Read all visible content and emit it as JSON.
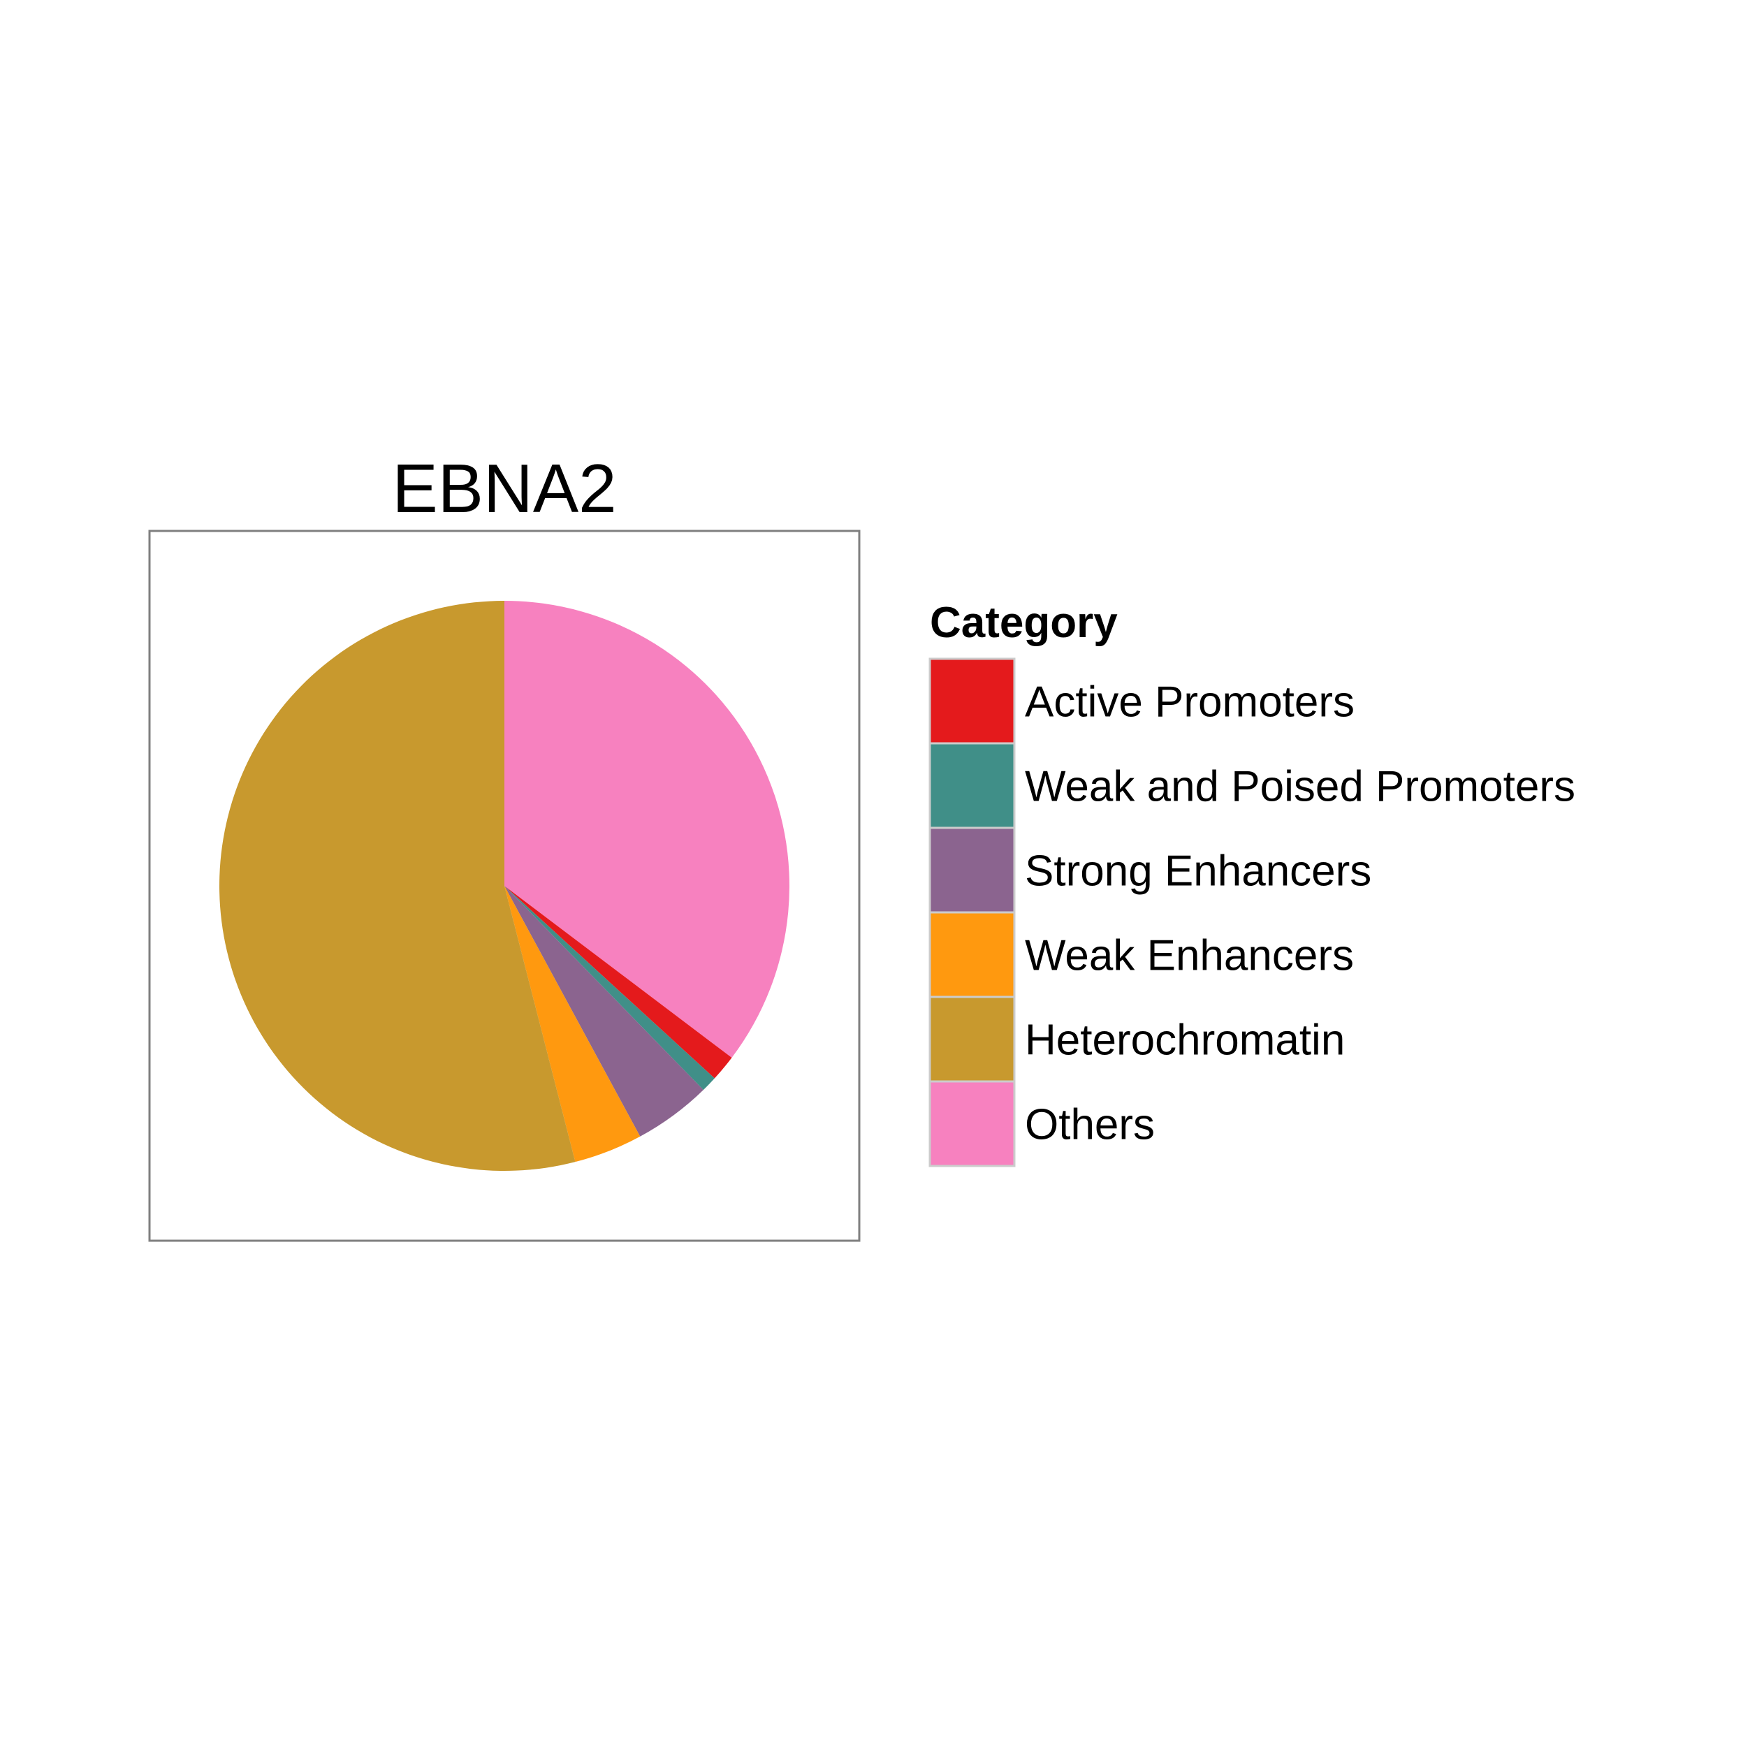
{
  "chart_data": {
    "type": "pie",
    "title": "EBNA2",
    "legend_title": "Category",
    "legend_position": "right",
    "start_angle_deg": 0,
    "direction": "clockwise",
    "slices": [
      {
        "label": "Others",
        "value": 35.3,
        "color": "#F781BF"
      },
      {
        "label": "Active Promoters",
        "value": 1.5,
        "color": "#E41A1C"
      },
      {
        "label": "Weak and Poised Promoters",
        "value": 0.9,
        "color": "#408F88"
      },
      {
        "label": "Strong Enhancers",
        "value": 4.4,
        "color": "#8B648F"
      },
      {
        "label": "Weak Enhancers",
        "value": 3.9,
        "color": "#FF990F"
      },
      {
        "label": "Heterochromatin",
        "value": 54.0,
        "color": "#C8992E"
      }
    ],
    "legend_order": [
      "Active Promoters",
      "Weak and Poised Promoters",
      "Strong Enhancers",
      "Weak Enhancers",
      "Heterochromatin",
      "Others"
    ]
  }
}
